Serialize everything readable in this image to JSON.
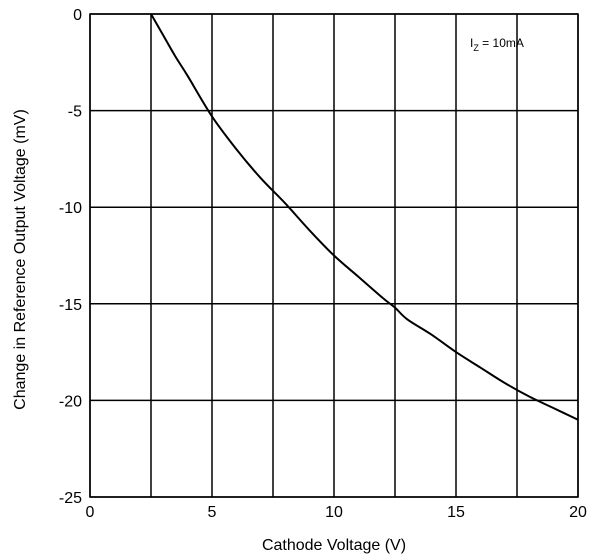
{
  "chart_data": {
    "type": "line",
    "xlabel": "Cathode Voltage (V)",
    "ylabel": "Change in Reference Output Voltage (mV)",
    "xlim": [
      0,
      20
    ],
    "ylim": [
      -25,
      0
    ],
    "xticks": [
      0,
      2.5,
      5,
      7.5,
      10,
      12.5,
      15,
      17.5,
      20
    ],
    "yticks": [
      0,
      -5,
      -10,
      -15,
      -20,
      -25
    ],
    "xtick_labels": [
      "0",
      "5",
      "10",
      "15",
      "20"
    ],
    "xtick_label_values": [
      0,
      5,
      10,
      15,
      20
    ],
    "ytick_labels": [
      "0",
      "-5",
      "-10",
      "-15",
      "-20",
      "-25"
    ],
    "grid": true,
    "annotation": {
      "main": "I",
      "sub": "Z",
      "rest": " = 10mA"
    },
    "series": [
      {
        "color": "#000000",
        "x": [
          2.5,
          3.0,
          3.5,
          4.0,
          5.0,
          6.0,
          7.0,
          8.0,
          9.0,
          10.0,
          11.0,
          12.0,
          12.5,
          13.0,
          14.0,
          15.0,
          16.0,
          17.0,
          18.0,
          19.0,
          20.0
        ],
        "y": [
          0.0,
          -1.1,
          -2.2,
          -3.2,
          -5.3,
          -7.0,
          -8.5,
          -9.8,
          -11.2,
          -12.5,
          -13.6,
          -14.7,
          -15.2,
          -15.8,
          -16.6,
          -17.5,
          -18.3,
          -19.1,
          -19.8,
          -20.4,
          -21.0
        ]
      }
    ]
  }
}
